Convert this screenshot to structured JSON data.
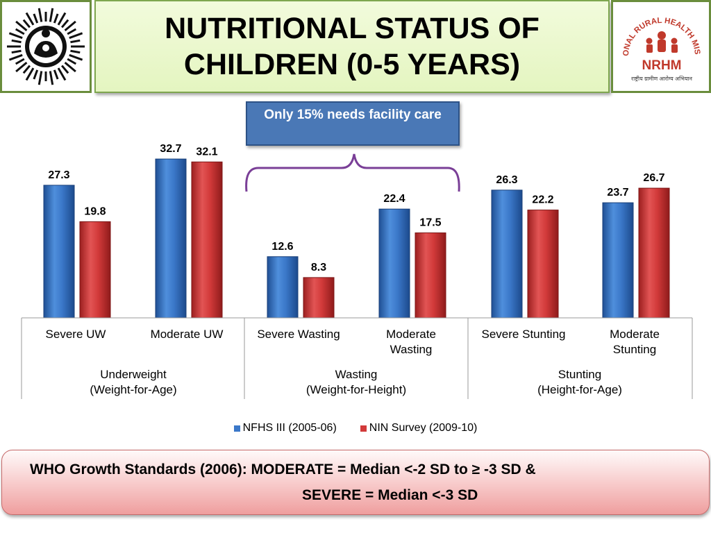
{
  "header": {
    "title": "NUTRITIONAL STATUS OF CHILDREN (0-5 YEARS)",
    "right_logo": {
      "arc_text": "NATIONAL RURAL HEALTH MISSION",
      "abbr": "NRHM",
      "hindi": "राष्ट्रीय ग्रामीण आरोग्य अभियान"
    }
  },
  "callout": "Only 15% needs facility care",
  "legend": {
    "nfhs": "NFHS III (2005-06)",
    "nin": "NIN Survey (2009-10)"
  },
  "note": {
    "line1": "WHO Growth Standards (2006): MODERATE = Median <-2 SD to ≥ -3 SD &",
    "line2": "SEVERE  = Median <-3 SD"
  },
  "colors": {
    "nfhs": "#3b78c9",
    "nin": "#d23a3a",
    "title_bg": "#e4f5c0",
    "logo_border": "#6a8d3c",
    "callout_bg": "#4a78b6",
    "bracket": "#7a3f97"
  },
  "chart_data": {
    "type": "bar",
    "categories": [
      "Severe UW",
      "Moderate UW",
      "Severe Wasting",
      "Moderate Wasting",
      "Severe Stunting",
      "Moderate Stunting"
    ],
    "groups": [
      "Underweight (Weight-for-Age)",
      "Wasting (Weight-for-Height)",
      "Stunting (Height-for-Age)"
    ],
    "series": [
      {
        "name": "NFHS III (2005-06)",
        "values": [
          27.3,
          32.7,
          12.6,
          22.4,
          26.3,
          23.7
        ]
      },
      {
        "name": "NIN Survey (2009-10)",
        "values": [
          19.8,
          32.1,
          8.3,
          17.5,
          22.2,
          26.7
        ]
      }
    ],
    "value_labels": [
      [
        "27.3",
        "32.7",
        "12.6",
        "22.4",
        "26.3",
        "23.7"
      ],
      [
        "19.8",
        "32.1",
        "8.3",
        "17.5",
        "22.2",
        "26.7"
      ]
    ],
    "ylim": [
      0,
      35
    ],
    "grid": false,
    "legend_position": "bottom"
  }
}
